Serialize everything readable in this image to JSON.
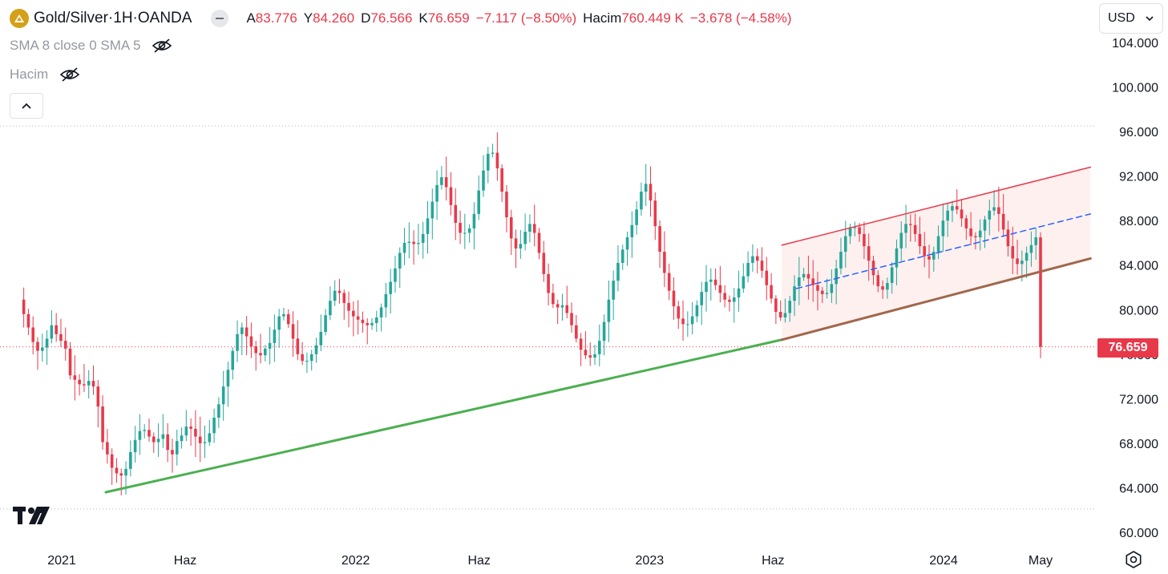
{
  "header": {
    "symbol": "Gold/Silver",
    "separator": " · ",
    "interval": "1H",
    "exchange": "OANDA",
    "open_label": "A",
    "open_value": "83.776",
    "high_label": "Y",
    "high_value": "84.260",
    "low_label": "D",
    "low_value": "76.566",
    "close_label": "K",
    "close_value": "76.659",
    "change": "−7.117 (−8.50%)",
    "volume_label": "Hacim",
    "volume_value": "760.449 K",
    "volume_change": "−3.678 (−4.58%)"
  },
  "indicators": {
    "sma_label": "SMA 8 close 0 SMA 5",
    "volume_label": "Hacim"
  },
  "currency": "USD",
  "last_price_label": "76.659",
  "colors": {
    "up": "#26a69a",
    "down": "#e8394a",
    "support_line": "#4caf50",
    "channel_upper": "#e8394a",
    "channel_lower": "#a0674b",
    "channel_mid": "#2962ff",
    "channel_fill": "#fdf0ef",
    "grid": "#b2b5be",
    "text": "#131722"
  },
  "chart_data": {
    "type": "candlestick",
    "symbol": "Gold/Silver",
    "ylim": [
      58.5,
      106
    ],
    "y_ticks": [
      "104.000",
      "100.000",
      "96.000",
      "92.000",
      "88.000",
      "84.000",
      "80.000",
      "76.000",
      "72.000",
      "68.000",
      "64.000",
      "60.000"
    ],
    "y_tick_values": [
      104,
      100,
      96,
      92,
      88,
      84,
      80,
      76,
      72,
      68,
      64,
      60
    ],
    "x_labels": [
      "2021",
      "Haz",
      "2022",
      "Haz",
      "2023",
      "Haz",
      "2024",
      "May"
    ],
    "x_label_times": [
      2021.0,
      2021.42,
      2022.0,
      2022.42,
      2023.0,
      2023.42,
      2024.0,
      2024.33
    ],
    "xlim": [
      2020.85,
      2024.5
    ],
    "horizontal_levels": [
      96.5,
      76.659,
      62.1
    ],
    "last_price": 76.659,
    "weekly_closes": [
      80.9,
      79.6,
      78.4,
      77.1,
      76.3,
      76.6,
      77.4,
      78.6,
      77.8,
      77.2,
      76.5,
      74.1,
      73.7,
      73.3,
      73.2,
      73.6,
      73.1,
      71.3,
      68.1,
      67.0,
      65.8,
      65.3,
      65.1,
      65.7,
      67.2,
      68.3,
      69.1,
      69.2,
      68.6,
      68.1,
      68.4,
      68.8,
      67.4,
      67.0,
      68.2,
      68.7,
      69.5,
      69.3,
      68.6,
      68.0,
      68.1,
      68.9,
      70.3,
      71.5,
      73.1,
      74.6,
      76.3,
      77.8,
      78.4,
      77.6,
      76.7,
      76.1,
      75.9,
      76.5,
      77.0,
      78.2,
      79.4,
      79.6,
      78.7,
      77.4,
      76.0,
      75.4,
      75.4,
      76.0,
      76.8,
      78.0,
      79.5,
      80.8,
      81.7,
      81.5,
      80.6,
      79.9,
      79.4,
      79.1,
      78.8,
      78.6,
      78.8,
      79.3,
      80.2,
      81.4,
      82.5,
      83.7,
      85.1,
      86.0,
      86.1,
      85.9,
      86.0,
      86.8,
      88.2,
      89.7,
      91.2,
      91.9,
      91.0,
      89.4,
      87.8,
      86.9,
      86.9,
      87.3,
      88.6,
      90.7,
      92.5,
      94.0,
      94.1,
      92.7,
      90.6,
      88.3,
      86.4,
      85.5,
      85.9,
      87.0,
      87.7,
      86.9,
      85.1,
      83.2,
      81.5,
      80.5,
      80.2,
      80.4,
      79.7,
      78.6,
      77.4,
      76.4,
      75.9,
      75.7,
      76.0,
      77.2,
      78.9,
      80.9,
      82.6,
      84.2,
      85.4,
      86.5,
      87.6,
      89.0,
      90.6,
      91.3,
      89.8,
      87.5,
      85.2,
      83.3,
      81.7,
      80.3,
      79.2,
      78.7,
      78.7,
      79.4,
      80.4,
      81.6,
      82.5,
      82.7,
      82.2,
      81.5,
      80.9,
      80.7,
      81.1,
      81.9,
      83.0,
      84.2,
      84.8,
      84.4,
      83.5,
      82.2,
      81.0,
      79.8,
      79.3,
      79.7,
      80.8,
      82.1,
      82.9,
      83.2,
      82.8,
      82.2,
      81.7,
      81.4,
      81.5,
      82.3,
      83.7,
      85.2,
      86.6,
      87.4,
      87.4,
      86.8,
      85.7,
      84.4,
      83.1,
      82.1,
      81.8,
      82.4,
      83.8,
      85.5,
      86.9,
      87.7,
      87.6,
      86.8,
      85.7,
      84.8,
      84.5,
      85.2,
      86.6,
      88.0,
      88.9,
      89.3,
      89.0,
      88.2,
      87.3,
      86.6,
      86.5,
      87.1,
      88.1,
      88.9,
      89.2,
      88.6,
      87.2,
      85.7,
      84.6,
      84.1,
      84.4,
      85.1,
      85.8,
      86.5,
      76.66
    ],
    "lines": [
      {
        "name": "support",
        "from": [
          2021.15,
          63.6
        ],
        "to": [
          2023.45,
          77.3
        ]
      },
      {
        "name": "channel_lower",
        "from": [
          2023.45,
          77.3
        ],
        "to": [
          2024.5,
          84.6
        ]
      },
      {
        "name": "channel_upper",
        "from": [
          2023.45,
          85.8
        ],
        "to": [
          2024.5,
          92.8
        ]
      },
      {
        "name": "channel_mid",
        "from": [
          2023.5,
          81.9
        ],
        "to": [
          2024.5,
          88.6
        ],
        "dashed": true
      }
    ]
  }
}
